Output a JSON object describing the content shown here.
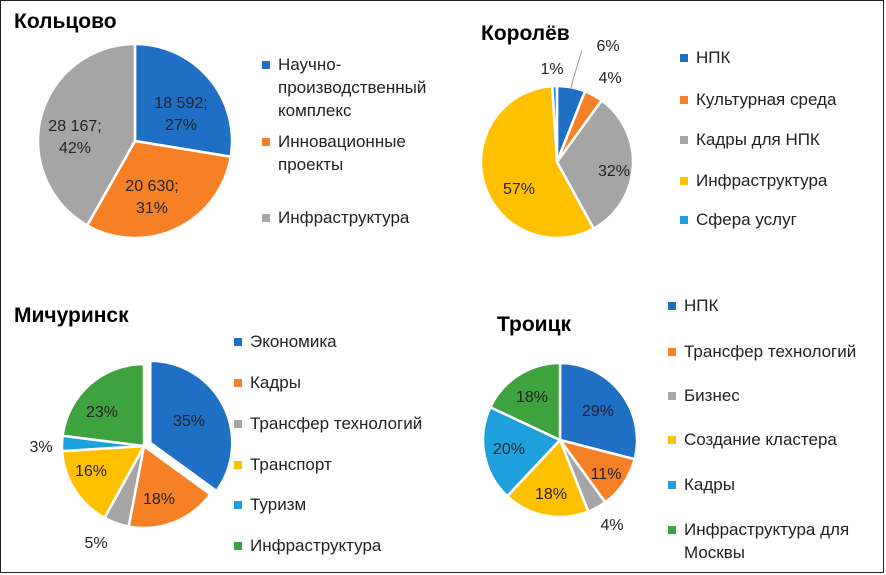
{
  "chart_data": [
    {
      "type": "pie",
      "title": "Кольцово",
      "categories": [
        "Научно-производственный комплекс",
        "Инновационные проекты",
        "Инфраструктура"
      ],
      "values": [
        18592,
        20630,
        28167
      ],
      "percent": [
        27,
        31,
        42
      ],
      "labels": [
        "18 592;\n27%",
        "20 630;\n31%",
        "28 167;\n42%"
      ],
      "legend": [
        "Научно-\nпроизводственный\nкомплекс",
        "Инновационные\nпроекты",
        "Инфраструктура"
      ],
      "colors": [
        "#1f6fc5",
        "#f58025",
        "#a5a5a5"
      ],
      "start_angle_deg": 0,
      "legend_position": "right"
    },
    {
      "type": "pie",
      "title": "Королёв",
      "categories": [
        "НПК",
        "Культурная среда",
        "Кадры для НПК",
        "Инфраструктура",
        "Сфера услуг"
      ],
      "values": [
        6,
        4,
        32,
        57,
        1
      ],
      "labels": [
        "6%",
        "4%",
        "32%",
        "57%",
        "1%"
      ],
      "legend": [
        "НПК",
        "Культурная среда",
        "Кадры для НПК",
        "Инфраструктура",
        "Сфера услуг"
      ],
      "colors": [
        "#1f6fc5",
        "#f58025",
        "#a5a5a5",
        "#ffc000",
        "#1ea0dc"
      ],
      "start_angle_deg": 0,
      "legend_position": "right"
    },
    {
      "type": "pie",
      "title": "Мичуринск",
      "categories": [
        "Экономика",
        "Кадры",
        "Трансфер технологий",
        "Транспорт",
        "Туризм",
        "Инфраструктура"
      ],
      "values": [
        35,
        18,
        5,
        16,
        3,
        23
      ],
      "labels": [
        "35%",
        "18%",
        "5%",
        "16%",
        "3%",
        "23%"
      ],
      "legend": [
        "Экономика",
        "Кадры",
        "Трансфер технологий",
        "Транспорт",
        "Туризм",
        "Инфраструктура"
      ],
      "colors": [
        "#1f6fc5",
        "#f58025",
        "#a5a5a5",
        "#ffc000",
        "#1ea0dc",
        "#3ea33e"
      ],
      "start_angle_deg": 0,
      "exploded_index": 0,
      "legend_position": "right"
    },
    {
      "type": "pie",
      "title": "Троицк",
      "categories": [
        "НПК",
        "Трансфер технологий",
        "Бизнес",
        "Создание кластера",
        "Кадры",
        "Инфраструктура для Москвы"
      ],
      "values": [
        29,
        11,
        4,
        18,
        20,
        18
      ],
      "labels": [
        "29%",
        "11%",
        "4%",
        "18%",
        "20%",
        "18%"
      ],
      "legend": [
        "НПК",
        "Трансфер технологий",
        "Бизнес",
        "Создание кластера",
        "Кадры",
        "Инфраструктура для\nМосквы"
      ],
      "colors": [
        "#1f6fc5",
        "#f58025",
        "#a5a5a5",
        "#ffc000",
        "#1ea0dc",
        "#3ea33e"
      ],
      "start_angle_deg": 0,
      "legend_position": "right"
    }
  ]
}
